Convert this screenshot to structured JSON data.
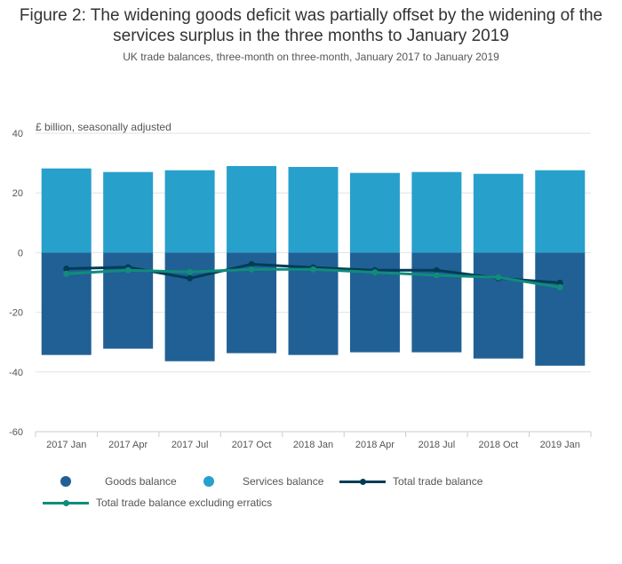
{
  "title": "Figure 2: The widening goods deficit was partially offset by the widening of the services surplus in the three months to January 2019",
  "subtitle": "UK trade balances, three-month on three-month, January 2017 to January 2019",
  "chart_data": {
    "type": "bar",
    "title": "Figure 2: The widening goods deficit was partially offset by the widening of the services surplus in the three months to January 2019",
    "ylabel": "£ billion, seasonally adjusted",
    "xlabel": "",
    "ylim": [
      -60,
      40
    ],
    "yticks": [
      "40",
      "20",
      "0",
      "-20",
      "-40",
      "-60"
    ],
    "categories": [
      "2017 Jan",
      "2017 Apr",
      "2017 Jul",
      "2017 Oct",
      "2018 Jan",
      "2018 Apr",
      "2018 Jul",
      "2018 Oct",
      "2019 Jan"
    ],
    "grid": true,
    "legend": "bottom",
    "series": [
      {
        "name": "Goods balance",
        "kind": "bar",
        "color": "#206095",
        "values": [
          -34.3,
          -32.2,
          -36.4,
          -33.7,
          -34.3,
          -33.4,
          -33.4,
          -35.5,
          -37.9
        ]
      },
      {
        "name": "Services balance",
        "kind": "bar",
        "color": "#27a0cc",
        "values": [
          28.2,
          27.0,
          27.6,
          29.0,
          28.7,
          26.7,
          27.0,
          26.4,
          27.6
        ]
      },
      {
        "name": "Total trade balance",
        "kind": "line",
        "color": "#003c57",
        "values": [
          -5.4,
          -4.9,
          -8.6,
          -3.9,
          -5.0,
          -5.9,
          -5.9,
          -8.6,
          -10.1
        ]
      },
      {
        "name": "Total trade balance excluding erratics",
        "kind": "line",
        "color": "#118c7b",
        "values": [
          -7.1,
          -5.9,
          -6.5,
          -5.6,
          -5.6,
          -6.6,
          -7.6,
          -8.3,
          -11.6
        ]
      }
    ]
  }
}
